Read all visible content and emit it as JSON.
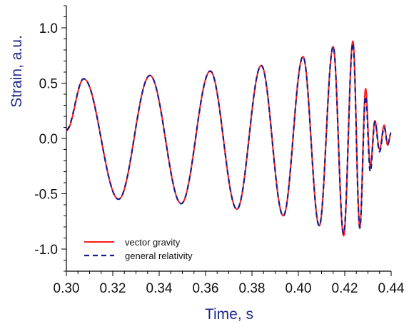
{
  "chart_data": {
    "type": "line",
    "xlabel": "Time, s",
    "ylabel": "Strain, a.u.",
    "xlim": [
      0.3,
      0.44
    ],
    "ylim": [
      -1.2,
      1.2
    ],
    "xticks": [
      "0.30",
      "0.32",
      "0.34",
      "0.36",
      "0.38",
      "0.40",
      "0.42",
      "0.44"
    ],
    "yticks": [
      "1.0",
      "0.5",
      "0.0",
      "-0.5",
      "-1.0"
    ],
    "xtick_values": [
      0.3,
      0.32,
      0.34,
      0.36,
      0.38,
      0.4,
      0.42,
      0.44
    ],
    "ytick_values": [
      1.0,
      0.5,
      0.0,
      -0.5,
      -1.0
    ],
    "grid": false,
    "legend_position": "lower-left",
    "colors": {
      "vector_gravity": "#ff1a1a",
      "general_relativity": "#1a1a8c",
      "axis_title": "#1f2a8a"
    },
    "series": [
      {
        "name": "vector gravity",
        "style": "solid",
        "color": "#ff1a1a",
        "extrema": [
          [
            0.3,
            0.07
          ],
          [
            0.3075,
            0.54
          ],
          [
            0.3225,
            -0.55
          ],
          [
            0.336,
            0.57
          ],
          [
            0.3495,
            -0.59
          ],
          [
            0.362,
            0.61
          ],
          [
            0.3735,
            -0.64
          ],
          [
            0.384,
            0.66
          ],
          [
            0.3935,
            -0.7
          ],
          [
            0.402,
            0.74
          ],
          [
            0.409,
            -0.79
          ],
          [
            0.415,
            0.83
          ],
          [
            0.4195,
            -0.88
          ],
          [
            0.4235,
            0.88
          ],
          [
            0.4265,
            -0.8
          ],
          [
            0.429,
            0.45
          ],
          [
            0.431,
            -0.25
          ],
          [
            0.433,
            0.16
          ],
          [
            0.435,
            -0.1
          ],
          [
            0.437,
            0.12
          ],
          [
            0.4385,
            -0.06
          ],
          [
            0.44,
            0.05
          ]
        ]
      },
      {
        "name": "general relativity",
        "style": "dashed",
        "color": "#1a1a8c",
        "extrema": [
          [
            0.3,
            0.08
          ],
          [
            0.3075,
            0.54
          ],
          [
            0.3225,
            -0.55
          ],
          [
            0.336,
            0.57
          ],
          [
            0.3495,
            -0.59
          ],
          [
            0.362,
            0.61
          ],
          [
            0.3735,
            -0.64
          ],
          [
            0.384,
            0.66
          ],
          [
            0.3935,
            -0.7
          ],
          [
            0.402,
            0.74
          ],
          [
            0.409,
            -0.79
          ],
          [
            0.415,
            0.83
          ],
          [
            0.4195,
            -0.86
          ],
          [
            0.4235,
            0.86
          ],
          [
            0.4265,
            -0.81
          ],
          [
            0.429,
            0.38
          ],
          [
            0.431,
            -0.3
          ],
          [
            0.433,
            0.15
          ],
          [
            0.435,
            -0.12
          ],
          [
            0.437,
            0.1
          ],
          [
            0.4385,
            -0.05
          ],
          [
            0.44,
            0.05
          ]
        ]
      }
    ]
  }
}
